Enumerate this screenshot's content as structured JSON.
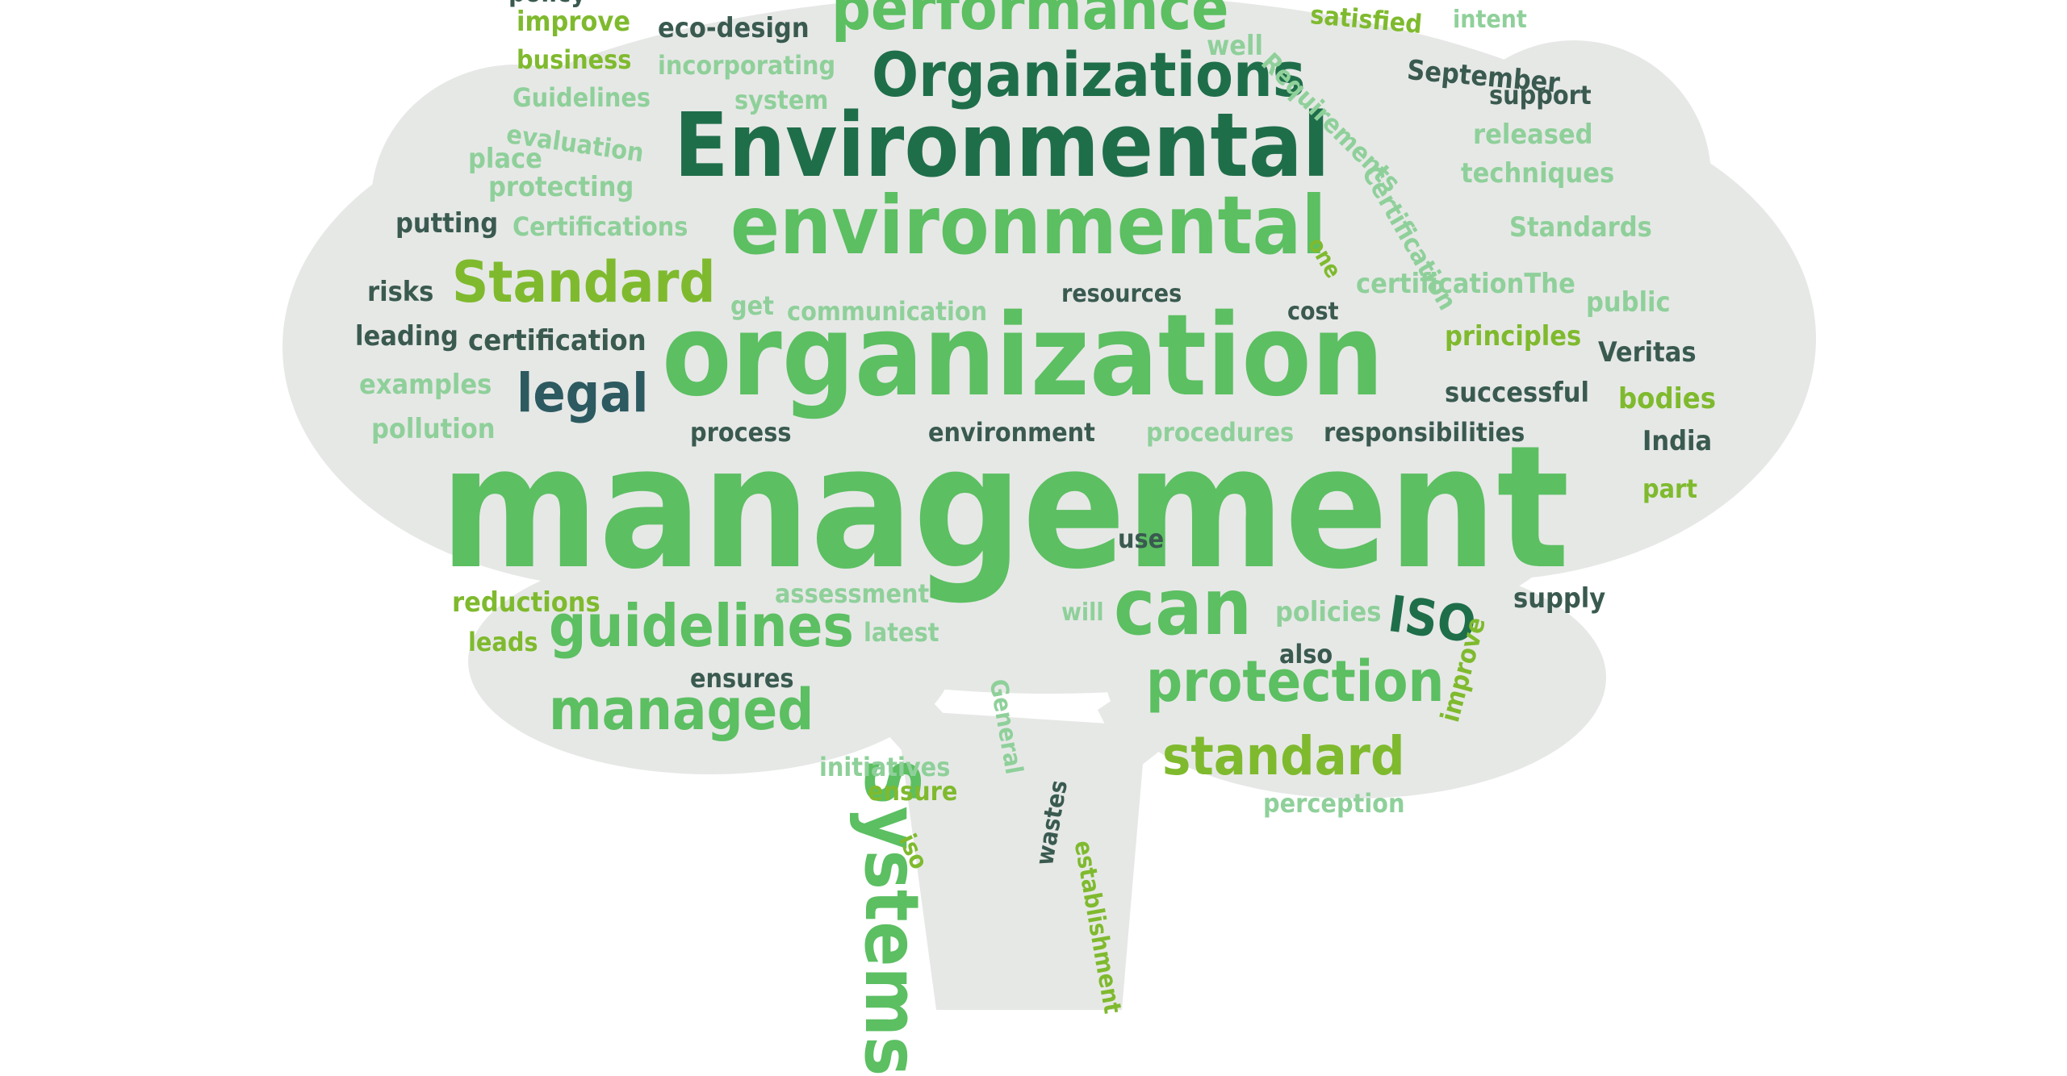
{
  "image": {
    "description_kind": "word-cloud",
    "shape": "tree",
    "colors": {
      "background": "#ffffff",
      "silhouette": "#e6e8e6",
      "light_green": "#5cbf62",
      "lime_green": "#7fba2e",
      "dark_green": "#1f6e4a",
      "teal": "#3a9a80",
      "pale_green": "#8fd09a",
      "navy": "#2c5a60"
    }
  },
  "words": [
    {
      "text": "management",
      "color": "#5cbf62"
    },
    {
      "text": "organization",
      "color": "#5cbf62"
    },
    {
      "text": "Environmental",
      "color": "#1f6e4a"
    },
    {
      "text": "environmental",
      "color": "#5cbf62"
    },
    {
      "text": "Organizations",
      "color": "#1f6e4a"
    },
    {
      "text": "performance",
      "color": "#5cbf62"
    },
    {
      "text": "Standard",
      "color": "#7fba2e"
    },
    {
      "text": "guidelines",
      "color": "#5cbf62"
    },
    {
      "text": "managed",
      "color": "#5cbf62"
    },
    {
      "text": "protection",
      "color": "#5cbf62"
    },
    {
      "text": "standard",
      "color": "#7fba2e"
    },
    {
      "text": "can",
      "color": "#5cbf62"
    },
    {
      "text": "ISO",
      "color": "#1f6e4a"
    },
    {
      "text": "legal",
      "color": "#2c5a60"
    },
    {
      "text": "Systems",
      "color": "#5cbf62"
    },
    {
      "text": "certification",
      "color": "#3a5a50"
    },
    {
      "text": "process",
      "color": "#3a5a50"
    },
    {
      "text": "environment",
      "color": "#3a5a50"
    },
    {
      "text": "procedures",
      "color": "#8fd09a"
    },
    {
      "text": "responsibilities",
      "color": "#3a5a50"
    },
    {
      "text": "successful",
      "color": "#3a5a50"
    },
    {
      "text": "bodies",
      "color": "#7fba2e"
    },
    {
      "text": "India",
      "color": "#3a5a50"
    },
    {
      "text": "part",
      "color": "#7fba2e"
    },
    {
      "text": "Veritas",
      "color": "#3a5a50"
    },
    {
      "text": "principles",
      "color": "#7fba2e"
    },
    {
      "text": "public",
      "color": "#8fd09a"
    },
    {
      "text": "certificationThe",
      "color": "#8fd09a"
    },
    {
      "text": "cost",
      "color": "#3a5a50"
    },
    {
      "text": "resources",
      "color": "#3a5a50"
    },
    {
      "text": "communication",
      "color": "#8fd09a"
    },
    {
      "text": "get",
      "color": "#8fd09a"
    },
    {
      "text": "risks",
      "color": "#3a5a50"
    },
    {
      "text": "leading",
      "color": "#3a5a50"
    },
    {
      "text": "examples",
      "color": "#8fd09a"
    },
    {
      "text": "pollution",
      "color": "#8fd09a"
    },
    {
      "text": "putting",
      "color": "#3a5a50"
    },
    {
      "text": "Certifications",
      "color": "#8fd09a"
    },
    {
      "text": "protecting",
      "color": "#8fd09a"
    },
    {
      "text": "place",
      "color": "#8fd09a"
    },
    {
      "text": "evaluation",
      "color": "#8fd09a"
    },
    {
      "text": "Guidelines",
      "color": "#8fd09a"
    },
    {
      "text": "system",
      "color": "#8fd09a"
    },
    {
      "text": "business",
      "color": "#7fba2e"
    },
    {
      "text": "incorporating",
      "color": "#8fd09a"
    },
    {
      "text": "improve",
      "color": "#7fba2e"
    },
    {
      "text": "eco-design",
      "color": "#3a5a50"
    },
    {
      "text": "well",
      "color": "#8fd09a"
    },
    {
      "text": "satisfied",
      "color": "#7fba2e"
    },
    {
      "text": "intent",
      "color": "#8fd09a"
    },
    {
      "text": "Requirements",
      "color": "#8fd09a"
    },
    {
      "text": "September",
      "color": "#3a5a50"
    },
    {
      "text": "support",
      "color": "#3a5a50"
    },
    {
      "text": "released",
      "color": "#8fd09a"
    },
    {
      "text": "techniques",
      "color": "#8fd09a"
    },
    {
      "text": "Certification",
      "color": "#8fd09a"
    },
    {
      "text": "one",
      "color": "#7fba2e"
    },
    {
      "text": "Standards",
      "color": "#8fd09a"
    },
    {
      "text": "use",
      "color": "#3a5a50"
    },
    {
      "text": "assessment",
      "color": "#8fd09a"
    },
    {
      "text": "will",
      "color": "#8fd09a"
    },
    {
      "text": "policies",
      "color": "#8fd09a"
    },
    {
      "text": "supply",
      "color": "#3a5a50"
    },
    {
      "text": "reductions",
      "color": "#7fba2e"
    },
    {
      "text": "leads",
      "color": "#7fba2e"
    },
    {
      "text": "latest",
      "color": "#8fd09a"
    },
    {
      "text": "also",
      "color": "#3a5a50"
    },
    {
      "text": "ensures",
      "color": "#3a5a50"
    },
    {
      "text": "improve",
      "color": "#7fba2e"
    },
    {
      "text": "General",
      "color": "#8fd09a"
    },
    {
      "text": "initiatives",
      "color": "#8fd09a"
    },
    {
      "text": "ensure",
      "color": "#7fba2e"
    },
    {
      "text": "iso",
      "color": "#7fba2e"
    },
    {
      "text": "wastes",
      "color": "#3a5a50"
    },
    {
      "text": "establishment",
      "color": "#7fba2e"
    },
    {
      "text": "perception",
      "color": "#8fd09a"
    },
    {
      "text": "policy",
      "color": "#3a5a50"
    }
  ]
}
